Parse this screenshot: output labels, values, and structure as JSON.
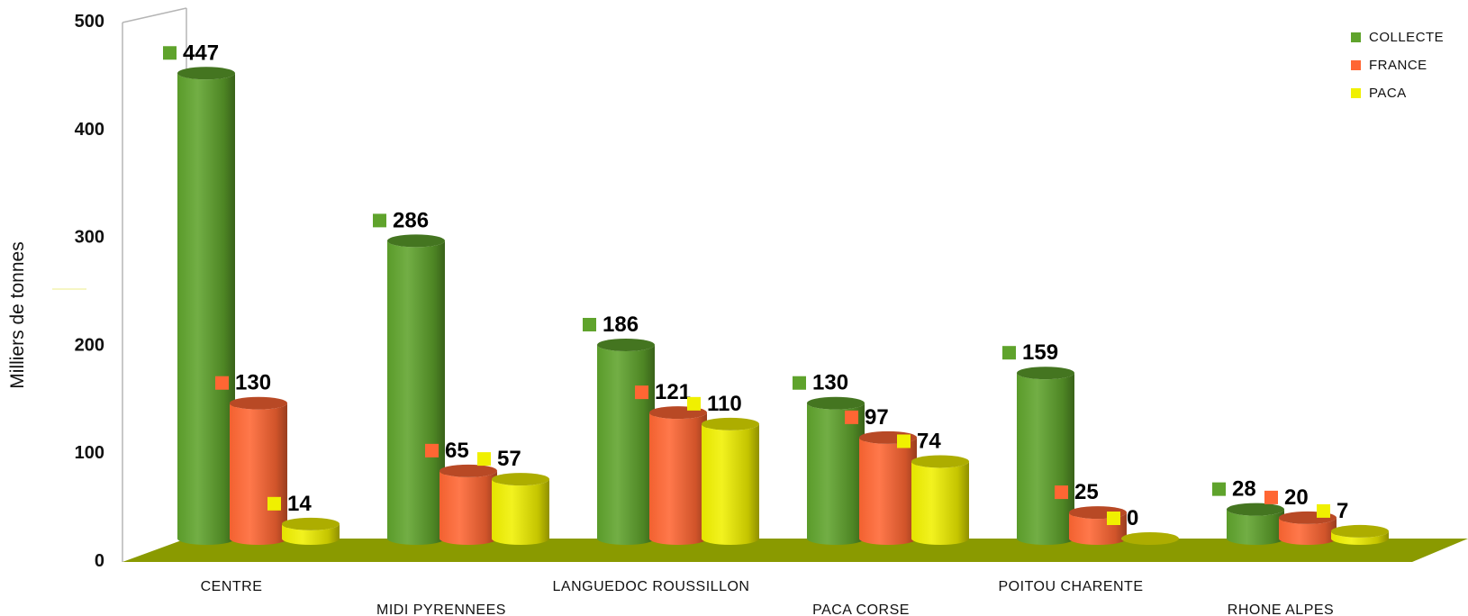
{
  "chart_data": {
    "type": "bar",
    "title": "",
    "xlabel": "",
    "ylabel": "Milliers de tonnes",
    "ylim": [
      0,
      500
    ],
    "yticks": [
      0,
      100,
      200,
      300,
      400,
      500
    ],
    "grid": false,
    "legend_position": "top-right",
    "style": "3d-cylinder",
    "categories": [
      "CENTRE",
      "MIDI PYRENNEES",
      "LANGUEDOC ROUSSILLON",
      "PACA CORSE",
      "POITOU CHARENTE",
      "RHONE ALPES"
    ],
    "series": [
      {
        "name": "COLLECTE",
        "color": "#5fa32c",
        "values": [
          447,
          286,
          186,
          130,
          159,
          28
        ]
      },
      {
        "name": "FRANCE",
        "color": "#ff6633",
        "values": [
          130,
          65,
          121,
          97,
          25,
          20
        ]
      },
      {
        "name": "PACA",
        "color": "#f0f000",
        "values": [
          14,
          57,
          110,
          74,
          0,
          7
        ]
      }
    ],
    "floor_color": "#8a9a00"
  }
}
